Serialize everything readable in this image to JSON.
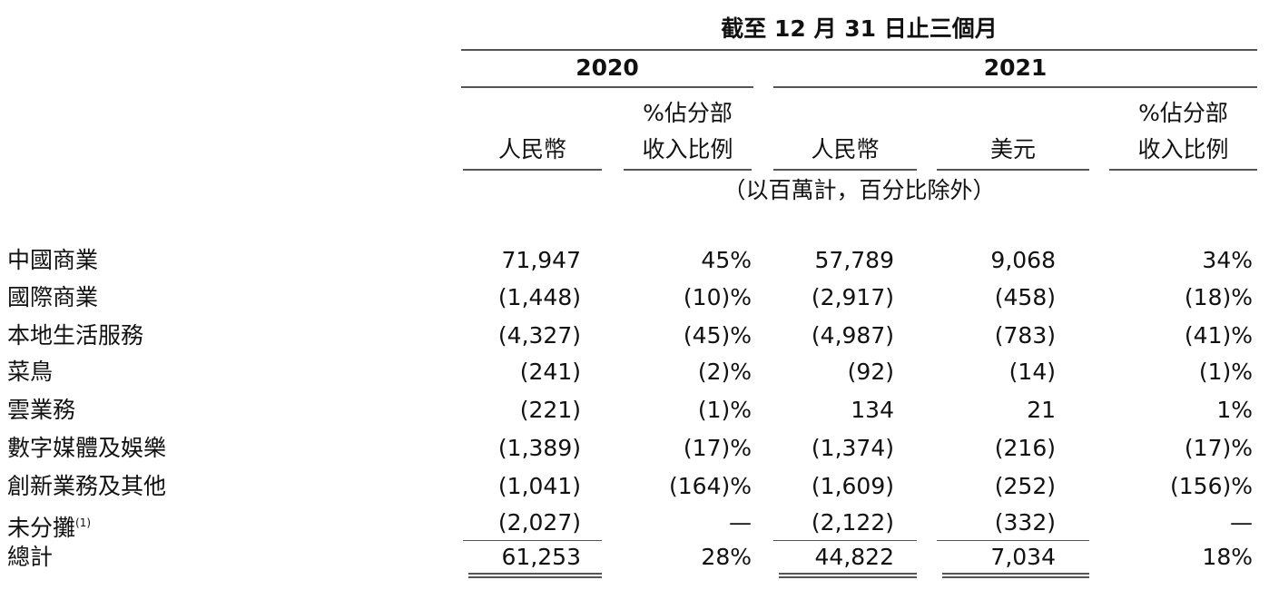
{
  "header": {
    "period": "截至 12 月 31 日止三個月",
    "years": [
      "2020",
      "2021"
    ],
    "columns": [
      [
        "人民幣"
      ],
      [
        "%佔分部",
        "收入比例"
      ],
      [
        "人民幣"
      ],
      [
        "美元"
      ],
      [
        "%佔分部",
        "收入比例"
      ]
    ],
    "unit_note": "（以百萬計，百分比除外）"
  },
  "table": {
    "rows": [
      {
        "label": "中國商業",
        "values": [
          "71,947",
          "45%",
          "57,789",
          "9,068",
          "34%"
        ]
      },
      {
        "label": "國際商業",
        "values": [
          "(1,448)",
          "(10)%",
          "(2,917)",
          "(458)",
          "(18)%"
        ]
      },
      {
        "label": "本地生活服務",
        "values": [
          "(4,327)",
          "(45)%",
          "(4,987)",
          "(783)",
          "(41)%"
        ]
      },
      {
        "label": "菜鳥",
        "values": [
          "(241)",
          "(2)%",
          "(92)",
          "(14)",
          "(1)%"
        ]
      },
      {
        "label": "雲業務",
        "values": [
          "(221)",
          "(1)%",
          "134",
          "21",
          "1%"
        ]
      },
      {
        "label": "數字媒體及娛樂",
        "values": [
          "(1,389)",
          "(17)%",
          "(1,374)",
          "(216)",
          "(17)%"
        ]
      },
      {
        "label": "創新業務及其他",
        "values": [
          "(1,041)",
          "(164)%",
          "(1,609)",
          "(252)",
          "(156)%"
        ]
      },
      {
        "label": "未分攤",
        "note": "(1)",
        "values": [
          "(2,027)",
          "—",
          "(2,122)",
          "(332)",
          "—"
        ]
      },
      {
        "label": "總計",
        "values": [
          "61,253",
          "28%",
          "44,822",
          "7,034",
          "18%"
        ]
      }
    ]
  }
}
